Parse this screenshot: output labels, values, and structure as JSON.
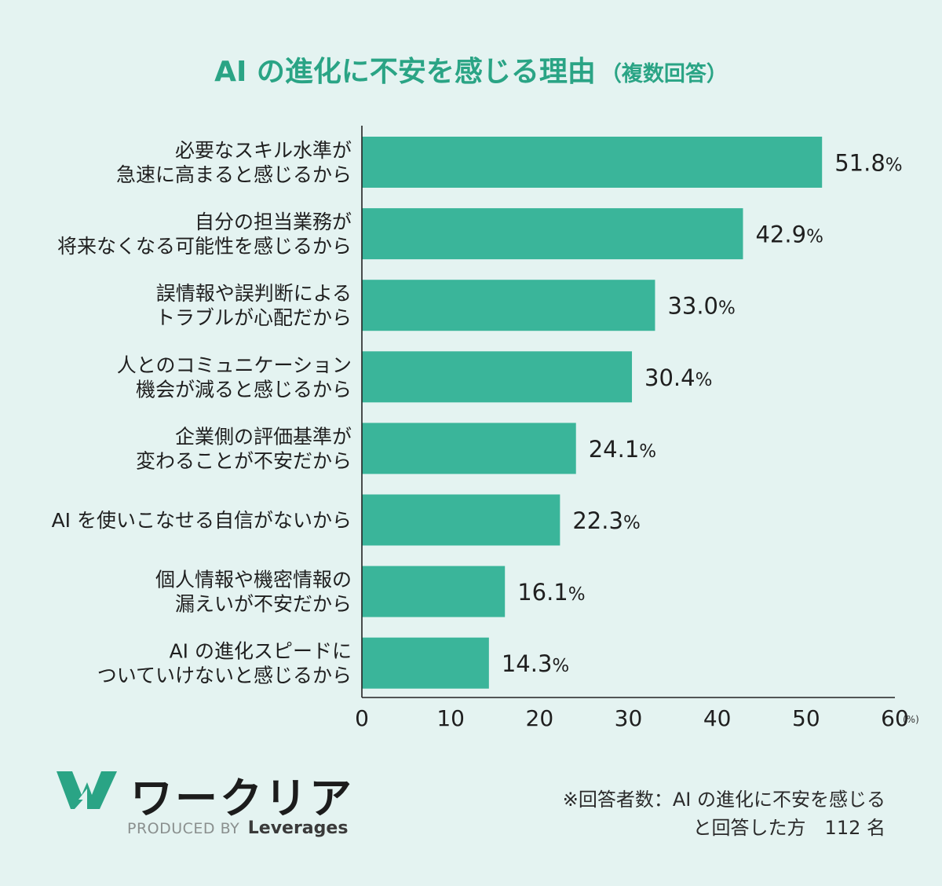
{
  "title": {
    "main": "AI の進化に不安を感じる理由",
    "sub": "（複数回答）"
  },
  "colors": {
    "accent": "#2aa485",
    "bar": "#3ab59a",
    "background": "#e4f3f1",
    "text": "#1f1f1f"
  },
  "chart_data": {
    "type": "bar",
    "orientation": "horizontal",
    "categories": [
      "必要なスキル水準が\n急速に高まると感じるから",
      "自分の担当業務が\n将来なくなる可能性を感じるから",
      "誤情報や誤判断による\nトラブルが心配だから",
      "人とのコミュニケーション\n機会が減ると感じるから",
      "企業側の評価基準が\n変わることが不安だから",
      "AI を使いこなせる自信がないから",
      "個人情報や機密情報の\n漏えいが不安だから",
      "AI の進化スピードに\nついていけないと感じるから"
    ],
    "values": [
      51.8,
      42.9,
      33.0,
      30.4,
      24.1,
      22.3,
      16.1,
      14.3
    ],
    "value_labels": [
      "51.8",
      "42.9",
      "33.0",
      "30.4",
      "24.1",
      "22.3",
      "16.1",
      "14.3"
    ],
    "value_unit": "%",
    "xlim": [
      0,
      60
    ],
    "xticks": [
      "0",
      "10",
      "20",
      "30",
      "40",
      "50",
      "60"
    ],
    "xunit": "(%)",
    "grid": false,
    "legend": "none"
  },
  "footer": {
    "logo_name": "ワークリア",
    "credit_prefix": "PRODUCED BY",
    "credit_brand": "Leverages",
    "note_line1": "※回答者数：AI の進化に不安を感じる",
    "note_line2": "と回答した方　112 名"
  }
}
